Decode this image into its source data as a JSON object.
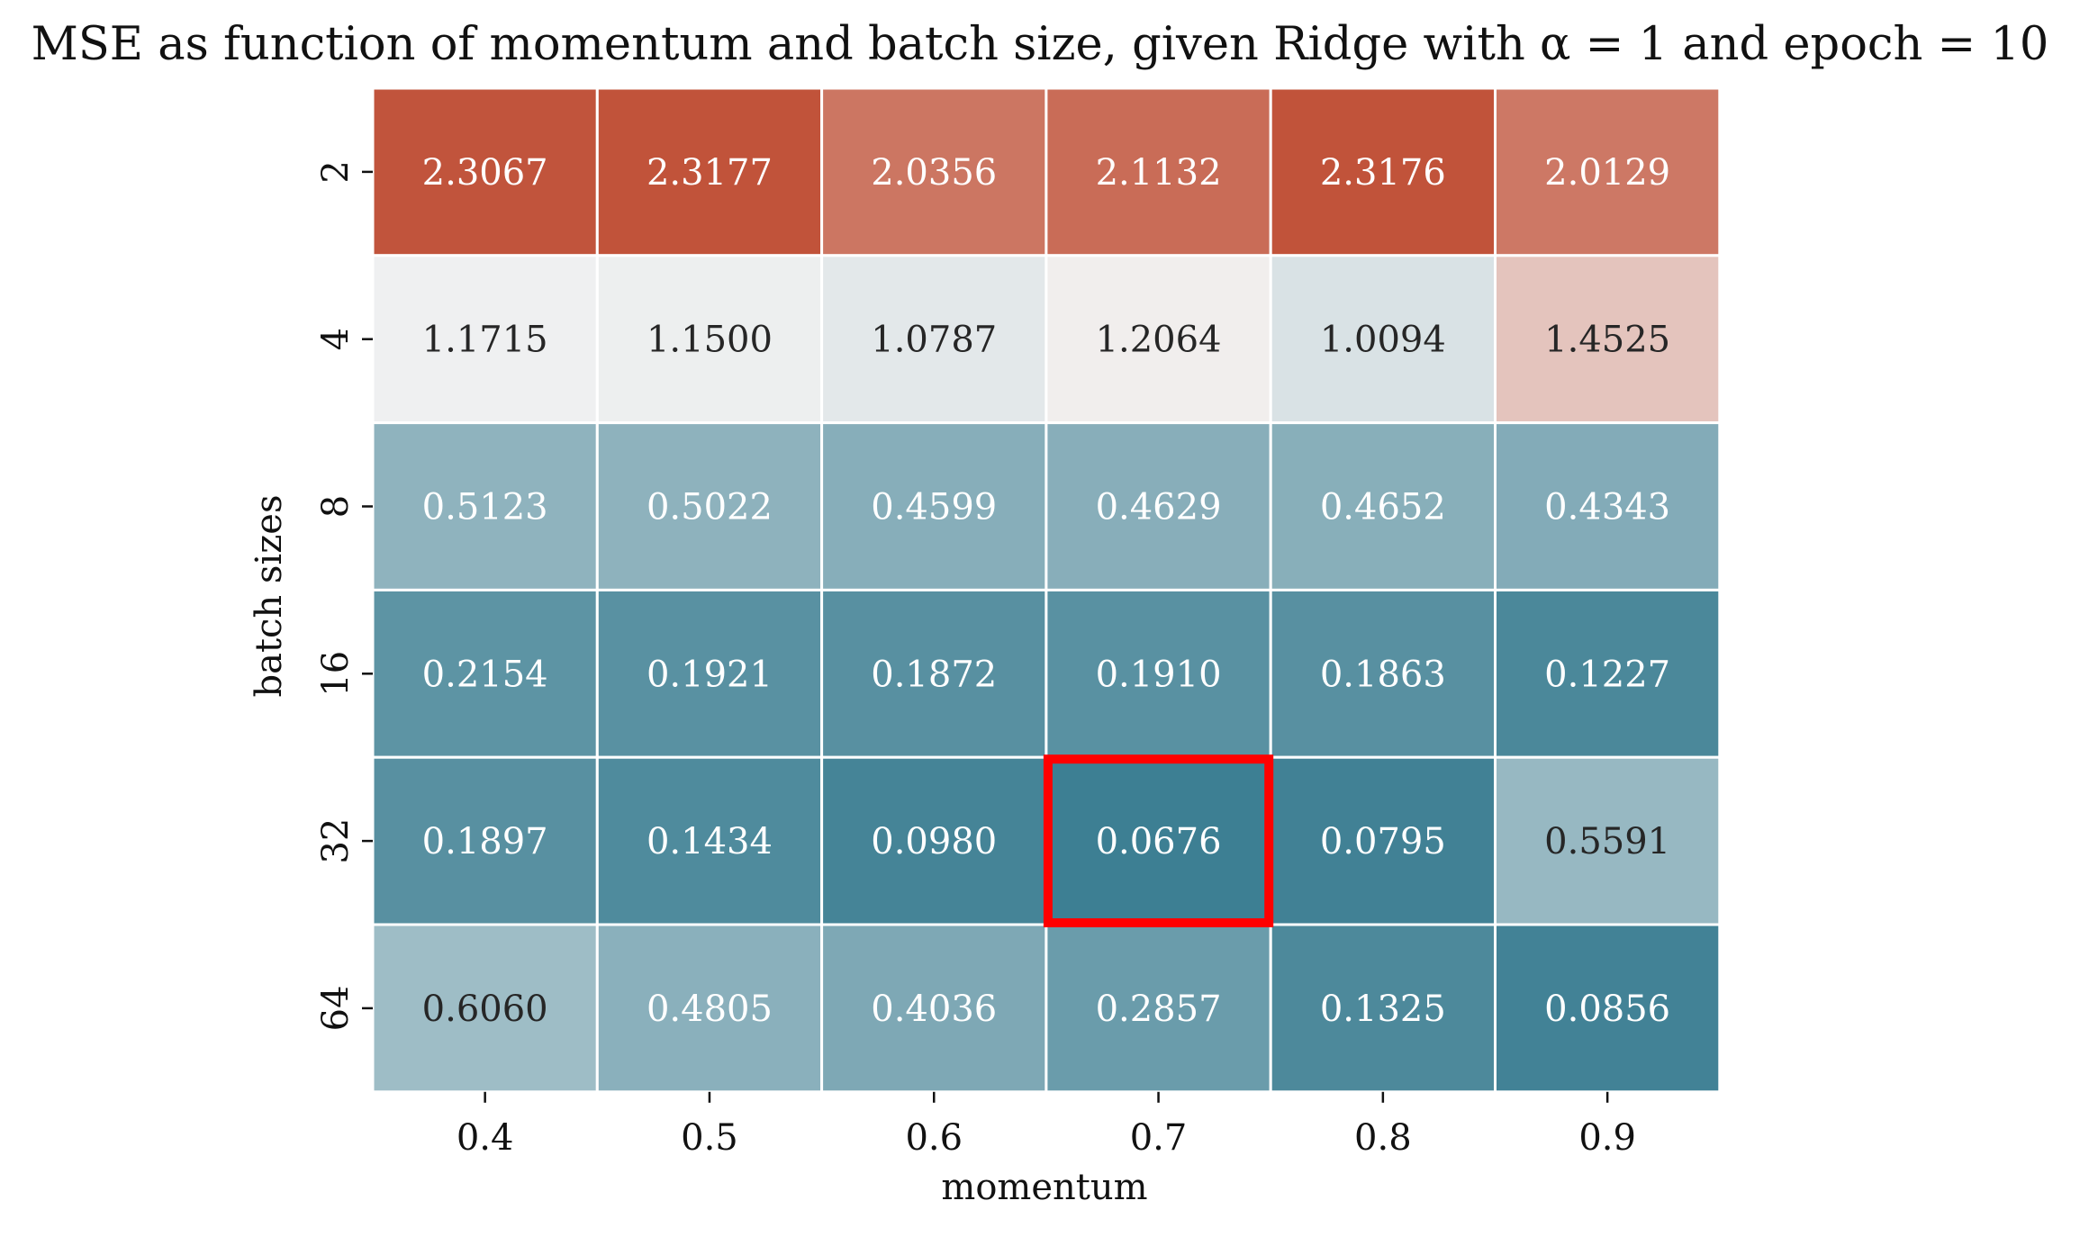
{
  "chart_data": {
    "type": "heatmap",
    "title": "MSE as function of momentum and batch size, given Ridge with α = 1 and epoch = 10",
    "xlabel": "momentum",
    "ylabel": "batch sizes",
    "x_categories": [
      "0.4",
      "0.5",
      "0.6",
      "0.7",
      "0.8",
      "0.9"
    ],
    "y_categories": [
      "2",
      "4",
      "8",
      "16",
      "32",
      "64"
    ],
    "values": [
      [
        2.3067,
        2.3177,
        2.0356,
        2.1132,
        2.3176,
        2.0129
      ],
      [
        1.1715,
        1.15,
        1.0787,
        1.2064,
        1.0094,
        1.4525
      ],
      [
        0.5123,
        0.5022,
        0.4599,
        0.4629,
        0.4652,
        0.4343
      ],
      [
        0.2154,
        0.1921,
        0.1872,
        0.191,
        0.1863,
        0.1227
      ],
      [
        0.1897,
        0.1434,
        0.098,
        0.0676,
        0.0795,
        0.5591
      ],
      [
        0.606,
        0.4805,
        0.4036,
        0.2857,
        0.1325,
        0.0856
      ]
    ],
    "cell_labels": [
      [
        "2.3067",
        "2.3177",
        "2.0356",
        "2.1132",
        "2.3176",
        "2.0129"
      ],
      [
        "1.1715",
        "1.1500",
        "1.0787",
        "1.2064",
        "1.0094",
        "1.4525"
      ],
      [
        "0.5123",
        "0.5022",
        "0.4599",
        "0.4629",
        "0.4652",
        "0.4343"
      ],
      [
        "0.2154",
        "0.1921",
        "0.1872",
        "0.1910",
        "0.1863",
        "0.1227"
      ],
      [
        "0.1897",
        "0.1434",
        "0.0980",
        "0.0676",
        "0.0795",
        "0.5591"
      ],
      [
        "0.6060",
        "0.4805",
        "0.4036",
        "0.2857",
        "0.1325",
        "0.0856"
      ]
    ],
    "colormap": {
      "type": "diverging",
      "low_color": "#3d7f93",
      "mid_color": "#f2f2f2",
      "high_color": "#c1533a",
      "vmin": 0.0676,
      "vcenter": 1.19,
      "vmax": 2.3177
    },
    "highlight": {
      "row": 4,
      "col": 3,
      "color": "#ff0000"
    },
    "colorbar": false,
    "grid": false,
    "gridline_color": "#ffffff"
  }
}
